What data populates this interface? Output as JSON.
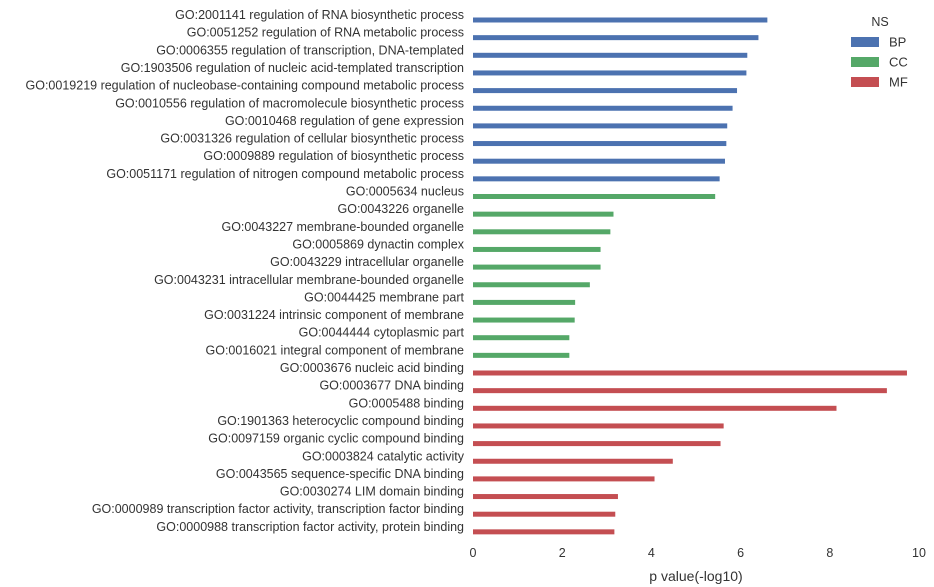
{
  "chart_data": {
    "type": "bar",
    "orientation": "horizontal",
    "xlabel": "p value(-log10)",
    "xlim": [
      0,
      10
    ],
    "xticks": [
      0,
      2,
      4,
      6,
      8,
      10
    ],
    "grid": false,
    "legend": {
      "title": "NS",
      "placement": "top-right",
      "entries": [
        {
          "name": "BP",
          "color": "#4c72b0"
        },
        {
          "name": "CC",
          "color": "#55a868"
        },
        {
          "name": "MF",
          "color": "#c44e52"
        }
      ]
    },
    "bars": [
      {
        "label": "GO:2001141 regulation of RNA biosynthetic process",
        "value": 6.6,
        "ns": "BP"
      },
      {
        "label": "GO:0051252 regulation of RNA metabolic process",
        "value": 6.4,
        "ns": "BP"
      },
      {
        "label": "GO:0006355 regulation of transcription, DNA-templated",
        "value": 6.15,
        "ns": "BP"
      },
      {
        "label": "GO:1903506 regulation of nucleic acid-templated transcription",
        "value": 6.13,
        "ns": "BP"
      },
      {
        "label": "GO:0019219 regulation of nucleobase-containing compound metabolic process",
        "value": 5.92,
        "ns": "BP"
      },
      {
        "label": "GO:0010556 regulation of macromolecule biosynthetic process",
        "value": 5.82,
        "ns": "BP"
      },
      {
        "label": "GO:0010468 regulation of gene expression",
        "value": 5.7,
        "ns": "BP"
      },
      {
        "label": "GO:0031326 regulation of cellular biosynthetic process",
        "value": 5.68,
        "ns": "BP"
      },
      {
        "label": "GO:0009889 regulation of biosynthetic process",
        "value": 5.65,
        "ns": "BP"
      },
      {
        "label": "GO:0051171 regulation of nitrogen compound metabolic process",
        "value": 5.53,
        "ns": "BP"
      },
      {
        "label": "GO:0005634 nucleus",
        "value": 5.43,
        "ns": "CC"
      },
      {
        "label": "GO:0043226 organelle",
        "value": 3.15,
        "ns": "CC"
      },
      {
        "label": "GO:0043227 membrane-bounded organelle",
        "value": 3.08,
        "ns": "CC"
      },
      {
        "label": "GO:0005869 dynactin complex",
        "value": 2.86,
        "ns": "CC"
      },
      {
        "label": "GO:0043229 intracellular organelle",
        "value": 2.86,
        "ns": "CC"
      },
      {
        "label": "GO:0043231 intracellular membrane-bounded organelle",
        "value": 2.62,
        "ns": "CC"
      },
      {
        "label": "GO:0044425 membrane part",
        "value": 2.29,
        "ns": "CC"
      },
      {
        "label": "GO:0031224 intrinsic component of membrane",
        "value": 2.28,
        "ns": "CC"
      },
      {
        "label": "GO:0044444 cytoplasmic part",
        "value": 2.16,
        "ns": "CC"
      },
      {
        "label": "GO:0016021 integral component of membrane",
        "value": 2.16,
        "ns": "CC"
      },
      {
        "label": "GO:0003676 nucleic acid binding",
        "value": 9.73,
        "ns": "MF"
      },
      {
        "label": "GO:0003677 DNA binding",
        "value": 9.28,
        "ns": "MF"
      },
      {
        "label": "GO:0005488 binding",
        "value": 8.15,
        "ns": "MF"
      },
      {
        "label": "GO:1901363 heterocyclic compound binding",
        "value": 5.62,
        "ns": "MF"
      },
      {
        "label": "GO:0097159 organic cyclic compound binding",
        "value": 5.55,
        "ns": "MF"
      },
      {
        "label": "GO:0003824 catalytic activity",
        "value": 4.48,
        "ns": "MF"
      },
      {
        "label": "GO:0043565 sequence-specific DNA binding",
        "value": 4.07,
        "ns": "MF"
      },
      {
        "label": "GO:0030274 LIM domain binding",
        "value": 3.25,
        "ns": "MF"
      },
      {
        "label": "GO:0000989 transcription factor activity, transcription factor binding",
        "value": 3.19,
        "ns": "MF"
      },
      {
        "label": "GO:0000988 transcription factor activity, protein binding",
        "value": 3.17,
        "ns": "MF"
      }
    ]
  }
}
